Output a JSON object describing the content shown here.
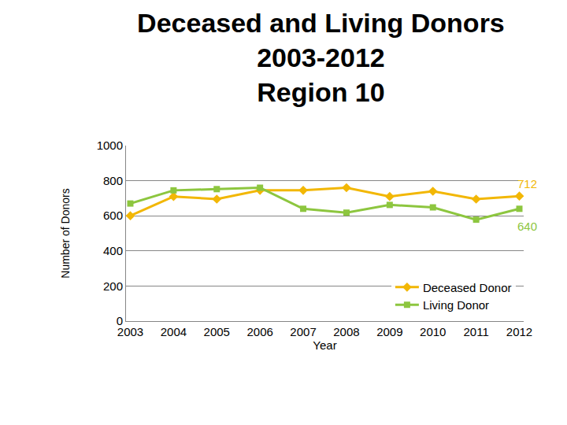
{
  "chart_data": {
    "type": "line",
    "title": "Deceased and Living Donors\n2003-2012\nRegion 10",
    "x_label": "Year",
    "y_label": "Number of Donors",
    "categories": [
      "2003",
      "2004",
      "2005",
      "2006",
      "2007",
      "2008",
      "2009",
      "2010",
      "2011",
      "2012"
    ],
    "series": [
      {
        "name": "Deceased Donor",
        "color": "#f2b705",
        "marker": "diamond",
        "values": [
          600,
          710,
          695,
          745,
          745,
          760,
          710,
          740,
          695,
          712
        ]
      },
      {
        "name": "Living Donor",
        "color": "#8dc63f",
        "marker": "square",
        "values": [
          670,
          745,
          752,
          760,
          640,
          618,
          662,
          648,
          578,
          640
        ]
      }
    ],
    "annotations": [
      {
        "x": "2012",
        "y": 712,
        "text": "712",
        "color": "#f2b705"
      },
      {
        "x": "2012",
        "y": 640,
        "text": "640",
        "color": "#8dc63f"
      }
    ],
    "ylim": [
      0,
      1000
    ],
    "yticks": [
      0,
      200,
      400,
      600,
      800,
      1000
    ],
    "grid": true,
    "legend": "lower right"
  }
}
